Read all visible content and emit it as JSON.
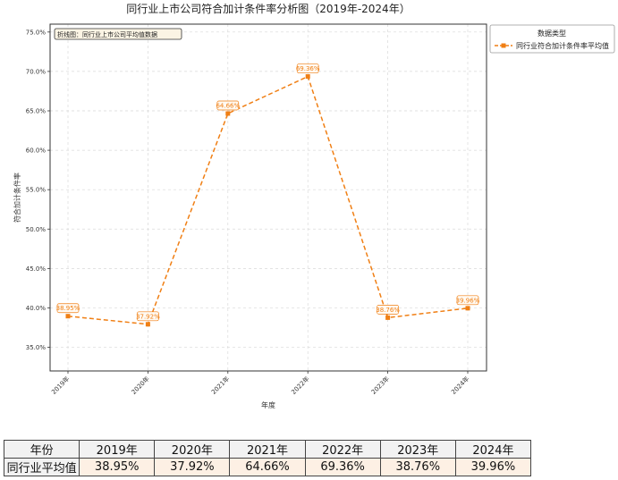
{
  "chart_data": {
    "type": "line",
    "title": "同行业上市公司符合加计条件率分析图（2019年-2024年）",
    "xlabel": "年度",
    "ylabel": "符合加计条件率",
    "categories": [
      "2019年",
      "2020年",
      "2021年",
      "2022年",
      "2023年",
      "2024年"
    ],
    "series": [
      {
        "name": "同行业符合加计条件率平均值",
        "values": [
          38.95,
          37.92,
          64.66,
          69.36,
          38.76,
          39.96
        ],
        "data_labels": [
          "38.95%",
          "37.92%",
          "64.66%",
          "69.36%",
          "38.76%",
          "39.96%"
        ],
        "color": "#f07f14"
      }
    ],
    "ylim": [
      32,
      76
    ],
    "yticks": [
      35,
      40,
      45,
      50,
      55,
      60,
      65,
      70,
      75
    ],
    "ytick_labels": [
      "35.0%",
      "40.0%",
      "45.0%",
      "50.0%",
      "55.0%",
      "60.0%",
      "65.0%",
      "70.0%",
      "75.0%"
    ],
    "grid": true,
    "legend": {
      "title": "数据类型",
      "placement": "outside-top-right"
    },
    "annotation": "折线图：同行业上市公司平均值数据"
  },
  "table": {
    "header": [
      "年份",
      "2019年",
      "2020年",
      "2021年",
      "2022年",
      "2023年",
      "2024年"
    ],
    "row_label": "同行业平均值",
    "row_values": [
      "38.95%",
      "37.92%",
      "64.66%",
      "69.36%",
      "38.76%",
      "39.96%"
    ]
  }
}
